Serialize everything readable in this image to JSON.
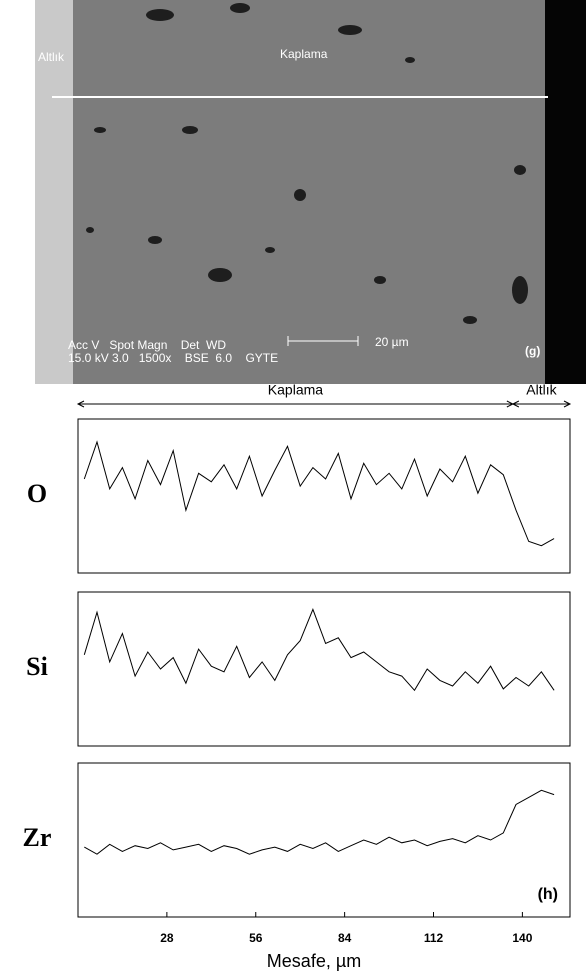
{
  "image": {
    "substrate_label": "Altlık",
    "coating_label": "Kaplama",
    "info_header": "Acc V   Spot Magn    Det  WD",
    "info_values": "15.0 kV 3.0   1500x    BSE  6.0    GYTE",
    "scale_label": "20 µm",
    "panel_label": "(g)"
  },
  "chart_data": [
    {
      "type": "line",
      "title": "O",
      "color": "#000000",
      "regions": [
        {
          "label": "Kaplama",
          "from": 0,
          "to": 137
        },
        {
          "label": "Altlık",
          "from": 137,
          "to": 155
        }
      ],
      "x": [
        2,
        6,
        10,
        14,
        18,
        22,
        26,
        30,
        34,
        38,
        42,
        46,
        50,
        54,
        58,
        62,
        66,
        70,
        74,
        78,
        82,
        86,
        90,
        94,
        98,
        102,
        106,
        110,
        114,
        118,
        122,
        126,
        130,
        134,
        138,
        142,
        146,
        150
      ],
      "values": [
        62,
        88,
        55,
        70,
        48,
        75,
        58,
        82,
        40,
        66,
        60,
        72,
        55,
        78,
        50,
        68,
        85,
        57,
        70,
        62,
        80,
        48,
        73,
        58,
        66,
        55,
        76,
        50,
        69,
        60,
        78,
        52,
        72,
        65,
        40,
        18,
        15,
        20
      ],
      "xlim": [
        0,
        155
      ],
      "ylim": [
        0,
        100
      ]
    },
    {
      "type": "line",
      "title": "Si",
      "color": "#000000",
      "x": [
        2,
        6,
        10,
        14,
        18,
        22,
        26,
        30,
        34,
        38,
        42,
        46,
        50,
        54,
        58,
        62,
        66,
        70,
        74,
        78,
        82,
        86,
        90,
        94,
        98,
        102,
        106,
        110,
        114,
        118,
        122,
        126,
        130,
        134,
        138,
        142,
        146,
        150
      ],
      "values": [
        60,
        90,
        55,
        75,
        45,
        62,
        50,
        58,
        40,
        64,
        52,
        48,
        66,
        44,
        55,
        42,
        60,
        70,
        92,
        68,
        72,
        58,
        62,
        55,
        48,
        45,
        35,
        50,
        42,
        38,
        48,
        40,
        52,
        36,
        44,
        38,
        48,
        35
      ],
      "xlim": [
        0,
        155
      ],
      "ylim": [
        0,
        100
      ]
    },
    {
      "type": "line",
      "title": "Zr",
      "color": "#000000",
      "annotation": "(h)",
      "x": [
        2,
        6,
        10,
        14,
        18,
        22,
        26,
        30,
        34,
        38,
        42,
        46,
        50,
        54,
        58,
        62,
        66,
        70,
        74,
        78,
        82,
        86,
        90,
        94,
        98,
        102,
        106,
        110,
        114,
        118,
        122,
        126,
        130,
        134,
        138,
        142,
        146,
        150
      ],
      "values": [
        45,
        40,
        47,
        42,
        46,
        44,
        48,
        43,
        45,
        47,
        42,
        46,
        44,
        40,
        43,
        45,
        42,
        47,
        44,
        48,
        42,
        46,
        50,
        47,
        52,
        48,
        50,
        46,
        49,
        51,
        48,
        53,
        50,
        55,
        75,
        80,
        85,
        82
      ],
      "xlim": [
        0,
        155
      ],
      "ylim": [
        0,
        100
      ],
      "xticks": [
        28,
        56,
        84,
        112,
        140
      ],
      "xlabel": "Mesafe, µm"
    }
  ]
}
